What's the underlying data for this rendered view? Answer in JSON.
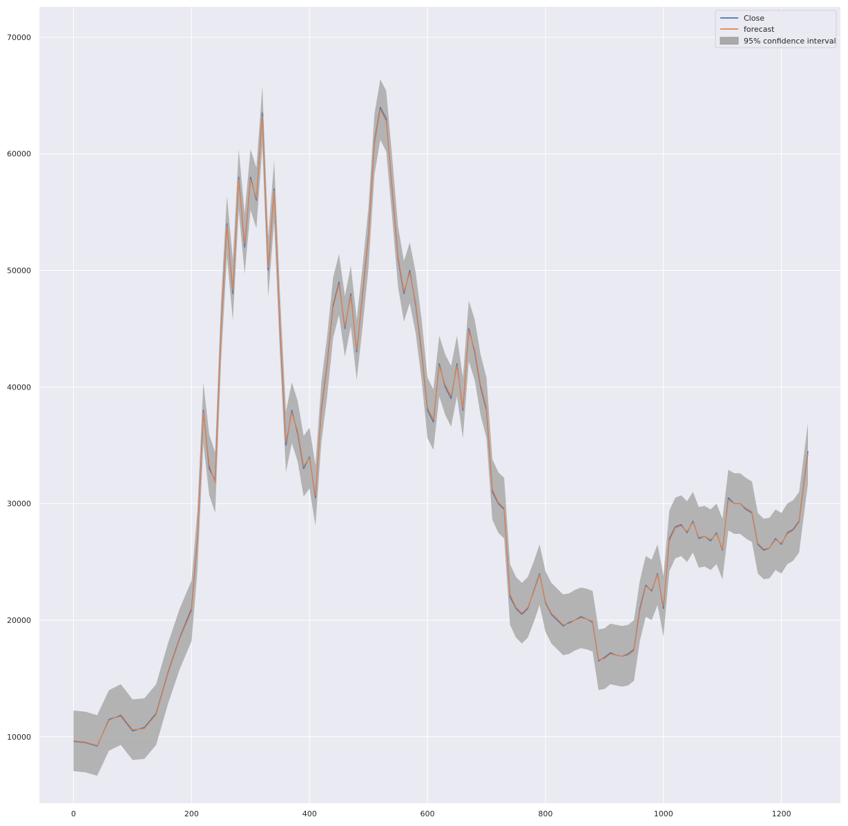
{
  "chart_data": {
    "type": "line",
    "title": "",
    "xlabel": "",
    "ylabel": "",
    "xlim": [
      -58,
      1300
    ],
    "ylim": [
      4300,
      72600
    ],
    "grid": true,
    "legend_placement": "top-right",
    "x_ticks": [
      0,
      200,
      400,
      600,
      800,
      1000,
      1200
    ],
    "y_ticks": [
      10000,
      20000,
      30000,
      40000,
      50000,
      60000,
      70000
    ],
    "series": [
      {
        "name": "Close",
        "color": "#4c72b0",
        "x": [
          0,
          20,
          40,
          60,
          80,
          100,
          120,
          140,
          160,
          180,
          200,
          210,
          220,
          230,
          240,
          250,
          260,
          270,
          280,
          290,
          300,
          310,
          320,
          330,
          340,
          350,
          360,
          370,
          380,
          390,
          400,
          410,
          420,
          430,
          440,
          450,
          460,
          470,
          480,
          490,
          500,
          510,
          520,
          530,
          540,
          550,
          560,
          570,
          580,
          590,
          600,
          610,
          620,
          630,
          640,
          650,
          660,
          670,
          680,
          690,
          700,
          710,
          720,
          730,
          740,
          750,
          760,
          770,
          780,
          790,
          800,
          810,
          820,
          830,
          840,
          850,
          860,
          870,
          880,
          890,
          900,
          910,
          920,
          930,
          940,
          950,
          960,
          970,
          980,
          990,
          1000,
          1010,
          1020,
          1030,
          1040,
          1050,
          1060,
          1070,
          1080,
          1090,
          1100,
          1110,
          1120,
          1130,
          1140,
          1150,
          1160,
          1170,
          1180,
          1190,
          1200,
          1210,
          1220,
          1230,
          1245
        ],
        "y": [
          9600,
          9500,
          9200,
          11500,
          11800,
          10500,
          10800,
          12000,
          15500,
          18500,
          21000,
          27000,
          38000,
          33000,
          32000,
          45000,
          54000,
          48000,
          58000,
          52000,
          58000,
          56000,
          63500,
          50000,
          57000,
          45000,
          35000,
          38000,
          36000,
          33000,
          34000,
          30500,
          38000,
          42000,
          47000,
          49000,
          45000,
          48000,
          43000,
          48000,
          53000,
          61000,
          64000,
          63000,
          57000,
          51000,
          48000,
          50000,
          47000,
          43000,
          38000,
          37000,
          42000,
          40000,
          39000,
          42000,
          38000,
          45000,
          43000,
          40000,
          38000,
          31000,
          30000,
          29500,
          22000,
          21000,
          20500,
          21000,
          22500,
          24000,
          21500,
          20500,
          20000,
          19500,
          19800,
          20000,
          20300,
          20100,
          19800,
          16500,
          16800,
          17200,
          17000,
          16900,
          17100,
          17500,
          21000,
          23000,
          22500,
          24000,
          21000,
          27000,
          28000,
          28200,
          27500,
          28500,
          27000,
          27200,
          26800,
          27500,
          26000,
          30500,
          30000,
          30000,
          29500,
          29200,
          26500,
          26000,
          26200,
          27000,
          26500,
          27500,
          27800,
          28500,
          34500
        ]
      },
      {
        "name": "forecast",
        "color": "#dd8452",
        "x": [
          0,
          20,
          40,
          60,
          80,
          100,
          120,
          140,
          160,
          180,
          200,
          210,
          220,
          230,
          240,
          250,
          260,
          270,
          280,
          290,
          300,
          310,
          320,
          330,
          340,
          350,
          360,
          370,
          380,
          390,
          400,
          410,
          420,
          430,
          440,
          450,
          460,
          470,
          480,
          490,
          500,
          510,
          520,
          530,
          540,
          550,
          560,
          570,
          580,
          590,
          600,
          610,
          620,
          630,
          640,
          650,
          660,
          670,
          680,
          690,
          700,
          710,
          720,
          730,
          740,
          750,
          760,
          770,
          780,
          790,
          800,
          810,
          820,
          830,
          840,
          850,
          860,
          870,
          880,
          890,
          900,
          910,
          920,
          930,
          940,
          950,
          960,
          970,
          980,
          990,
          1000,
          1010,
          1020,
          1030,
          1040,
          1050,
          1060,
          1070,
          1080,
          1090,
          1100,
          1110,
          1120,
          1130,
          1140,
          1150,
          1160,
          1170,
          1180,
          1190,
          1200,
          1210,
          1220,
          1230,
          1245
        ],
        "y": [
          9650,
          9550,
          9250,
          11400,
          11900,
          10600,
          10700,
          11900,
          15400,
          18400,
          20800,
          26800,
          37800,
          33300,
          31800,
          44800,
          53800,
          48300,
          57800,
          52300,
          57800,
          56200,
          63200,
          50300,
          56800,
          45300,
          35300,
          37800,
          36200,
          33200,
          33900,
          30700,
          37800,
          41800,
          46800,
          48800,
          45200,
          47800,
          43200,
          47800,
          52800,
          60800,
          63800,
          62800,
          57200,
          51200,
          48200,
          49800,
          47200,
          43200,
          38200,
          37200,
          41800,
          40200,
          39200,
          41800,
          38200,
          44800,
          43200,
          40200,
          38200,
          31200,
          30100,
          29600,
          22200,
          21100,
          20600,
          21100,
          22400,
          23900,
          21600,
          20600,
          20100,
          19600,
          19700,
          20000,
          20200,
          20100,
          19900,
          16600,
          16700,
          17100,
          17000,
          16900,
          17000,
          17400,
          20800,
          22900,
          22600,
          23900,
          21200,
          26800,
          27900,
          28100,
          27600,
          28400,
          27100,
          27200,
          26900,
          27400,
          26100,
          30300,
          30000,
          30000,
          29600,
          29300,
          26600,
          26100,
          26200,
          26900,
          26600,
          27400,
          27700,
          28400,
          34300
        ]
      },
      {
        "name": "95% confidence interval",
        "type": "area",
        "color": "#a9a9a9",
        "half_width": 2600
      }
    ]
  }
}
